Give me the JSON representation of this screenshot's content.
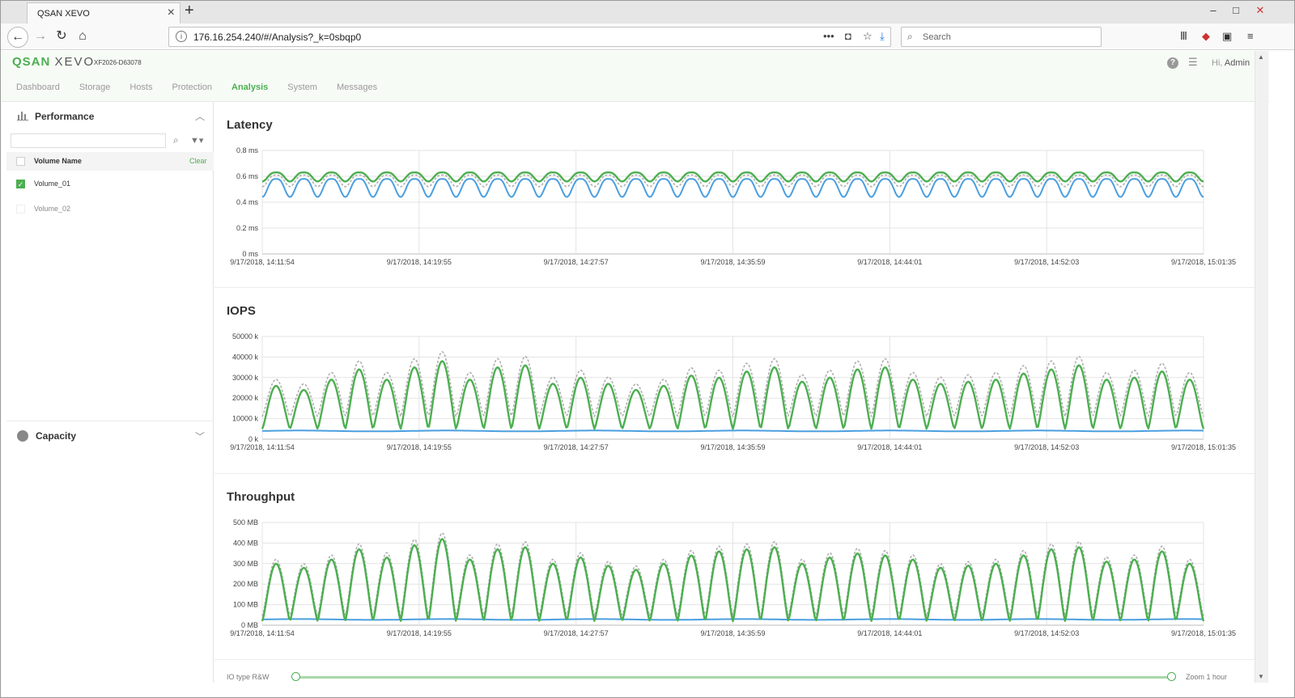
{
  "browser": {
    "tab_title": "QSAN XEVO",
    "url": "176.16.254.240/#/Analysis?_k=0sbqp0",
    "search_placeholder": "Search"
  },
  "app": {
    "logo_q": "QSAN",
    "logo_x": "XEVO",
    "serial": "XF2026-D63078",
    "greeting": "Hi,",
    "user": "Admin",
    "nav": [
      "Dashboard",
      "Storage",
      "Hosts",
      "Protection",
      "Analysis",
      "System",
      "Messages"
    ],
    "active_nav": "Analysis"
  },
  "sidebar": {
    "performance_title": "Performance",
    "volume_header": "Volume Name",
    "clear_label": "Clear",
    "volumes": [
      {
        "name": "Volume_01",
        "checked": true
      },
      {
        "name": "Volume_02",
        "checked": false
      }
    ],
    "capacity_title": "Capacity"
  },
  "colors": {
    "green": "#4caf50",
    "blue": "#4a9fe0",
    "gray_dashed": "#b0b0b0"
  },
  "x_ticks": [
    "9/17/2018, 14:11:54",
    "9/17/2018, 14:19:55",
    "9/17/2018, 14:27:57",
    "9/17/2018, 14:35:59",
    "9/17/2018, 14:44:01",
    "9/17/2018, 14:52:03",
    "9/17/2018, 15:01:35"
  ],
  "bottom": {
    "io_type": "IO type R&W",
    "zoom": "Zoom 1 hour",
    "range": [
      0,
      1
    ]
  },
  "chart_data": [
    {
      "type": "line",
      "title": "Latency",
      "y_ticks": [
        "0 ms",
        "0.2 ms",
        "0.4 ms",
        "0.6 ms",
        "0.8 ms"
      ],
      "ylim": [
        0,
        0.8
      ],
      "cycles": 34,
      "series": [
        {
          "role": "total",
          "style": "solid-green",
          "min": 0.56,
          "max": 0.63
        },
        {
          "role": "reference",
          "style": "dashed-gray",
          "min": 0.52,
          "max": 0.61
        },
        {
          "role": "volume",
          "style": "solid-blue",
          "min": 0.44,
          "max": 0.58
        }
      ]
    },
    {
      "type": "line",
      "title": "IOPS",
      "y_ticks": [
        "0 k",
        "10000 k",
        "20000 k",
        "30000 k",
        "40000 k",
        "50000 k"
      ],
      "ylim": [
        0,
        50000
      ],
      "cycles": 34,
      "peaks": [
        26000,
        24000,
        29000,
        34000,
        29000,
        35000,
        38000,
        29000,
        35000,
        36000,
        27000,
        30000,
        27000,
        24000,
        26000,
        31000,
        30000,
        33000,
        35000,
        28000,
        30000,
        34000,
        35000,
        29000,
        27000,
        28000,
        29000,
        32000,
        34000,
        36000,
        29000,
        30000,
        33000,
        29000,
        32000
      ],
      "series": [
        {
          "role": "total",
          "style": "solid-green",
          "trough": 5000
        },
        {
          "role": "reference",
          "style": "dashed-gray",
          "trough": 11000,
          "peak_factor": 1.12
        },
        {
          "role": "volume",
          "style": "solid-blue",
          "value": 4000
        }
      ]
    },
    {
      "type": "line",
      "title": "Throughput",
      "y_ticks": [
        "0 MB",
        "100 MB",
        "200 MB",
        "300 MB",
        "400 MB",
        "500 MB"
      ],
      "ylim": [
        0,
        500
      ],
      "cycles": 34,
      "peaks": [
        300,
        280,
        320,
        370,
        330,
        390,
        420,
        320,
        370,
        380,
        300,
        330,
        290,
        270,
        300,
        340,
        360,
        370,
        380,
        300,
        330,
        350,
        340,
        320,
        280,
        290,
        300,
        340,
        370,
        380,
        310,
        320,
        360,
        300,
        330
      ],
      "series": [
        {
          "role": "total",
          "style": "solid-green",
          "trough": 20
        },
        {
          "role": "reference",
          "style": "dashed-gray",
          "trough": 45,
          "peak_factor": 1.07
        },
        {
          "role": "volume",
          "style": "solid-blue",
          "value": 28
        }
      ]
    }
  ]
}
